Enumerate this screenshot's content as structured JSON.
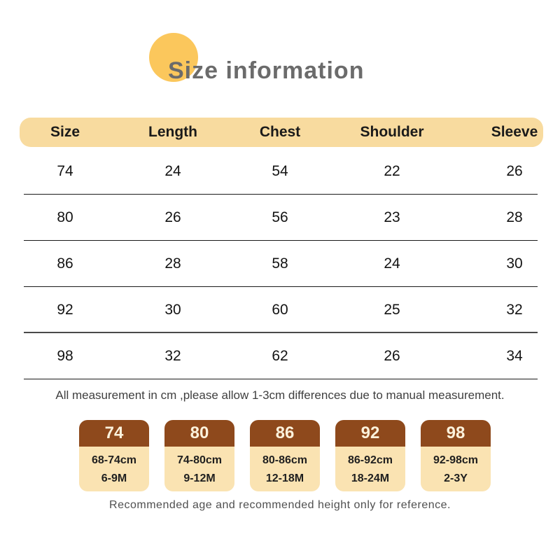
{
  "title": "Size information",
  "chart_data": {
    "type": "table",
    "title": "Size information",
    "units": "cm",
    "columns": [
      "Size",
      "Length",
      "Chest",
      "Shoulder",
      "Sleeve"
    ],
    "rows": [
      [
        74,
        24,
        54,
        22,
        26
      ],
      [
        80,
        26,
        56,
        23,
        28
      ],
      [
        86,
        28,
        58,
        24,
        30
      ],
      [
        92,
        30,
        60,
        25,
        32
      ],
      [
        98,
        32,
        62,
        26,
        34
      ]
    ],
    "note": "All measurement in cm ,please allow 1-3cm differences due to manual measurement.",
    "footnote": "Recommended age and recommended height only for reference.",
    "size_guide": [
      {
        "size": "74",
        "height_range": "68-74cm",
        "age": "6-9M"
      },
      {
        "size": "80",
        "height_range": "74-80cm",
        "age": "9-12M"
      },
      {
        "size": "86",
        "height_range": "80-86cm",
        "age": "12-18M"
      },
      {
        "size": "92",
        "height_range": "86-92cm",
        "age": "18-24M"
      },
      {
        "size": "98",
        "height_range": "92-98cm",
        "age": "2-3Y"
      }
    ]
  },
  "colors": {
    "accent_circle": "#FBC75C",
    "table_header_bg": "#F8DB9F",
    "card_header_bg": "#8E491C",
    "card_body_bg": "#FAE3B2",
    "title_text": "#6B6B6B"
  }
}
